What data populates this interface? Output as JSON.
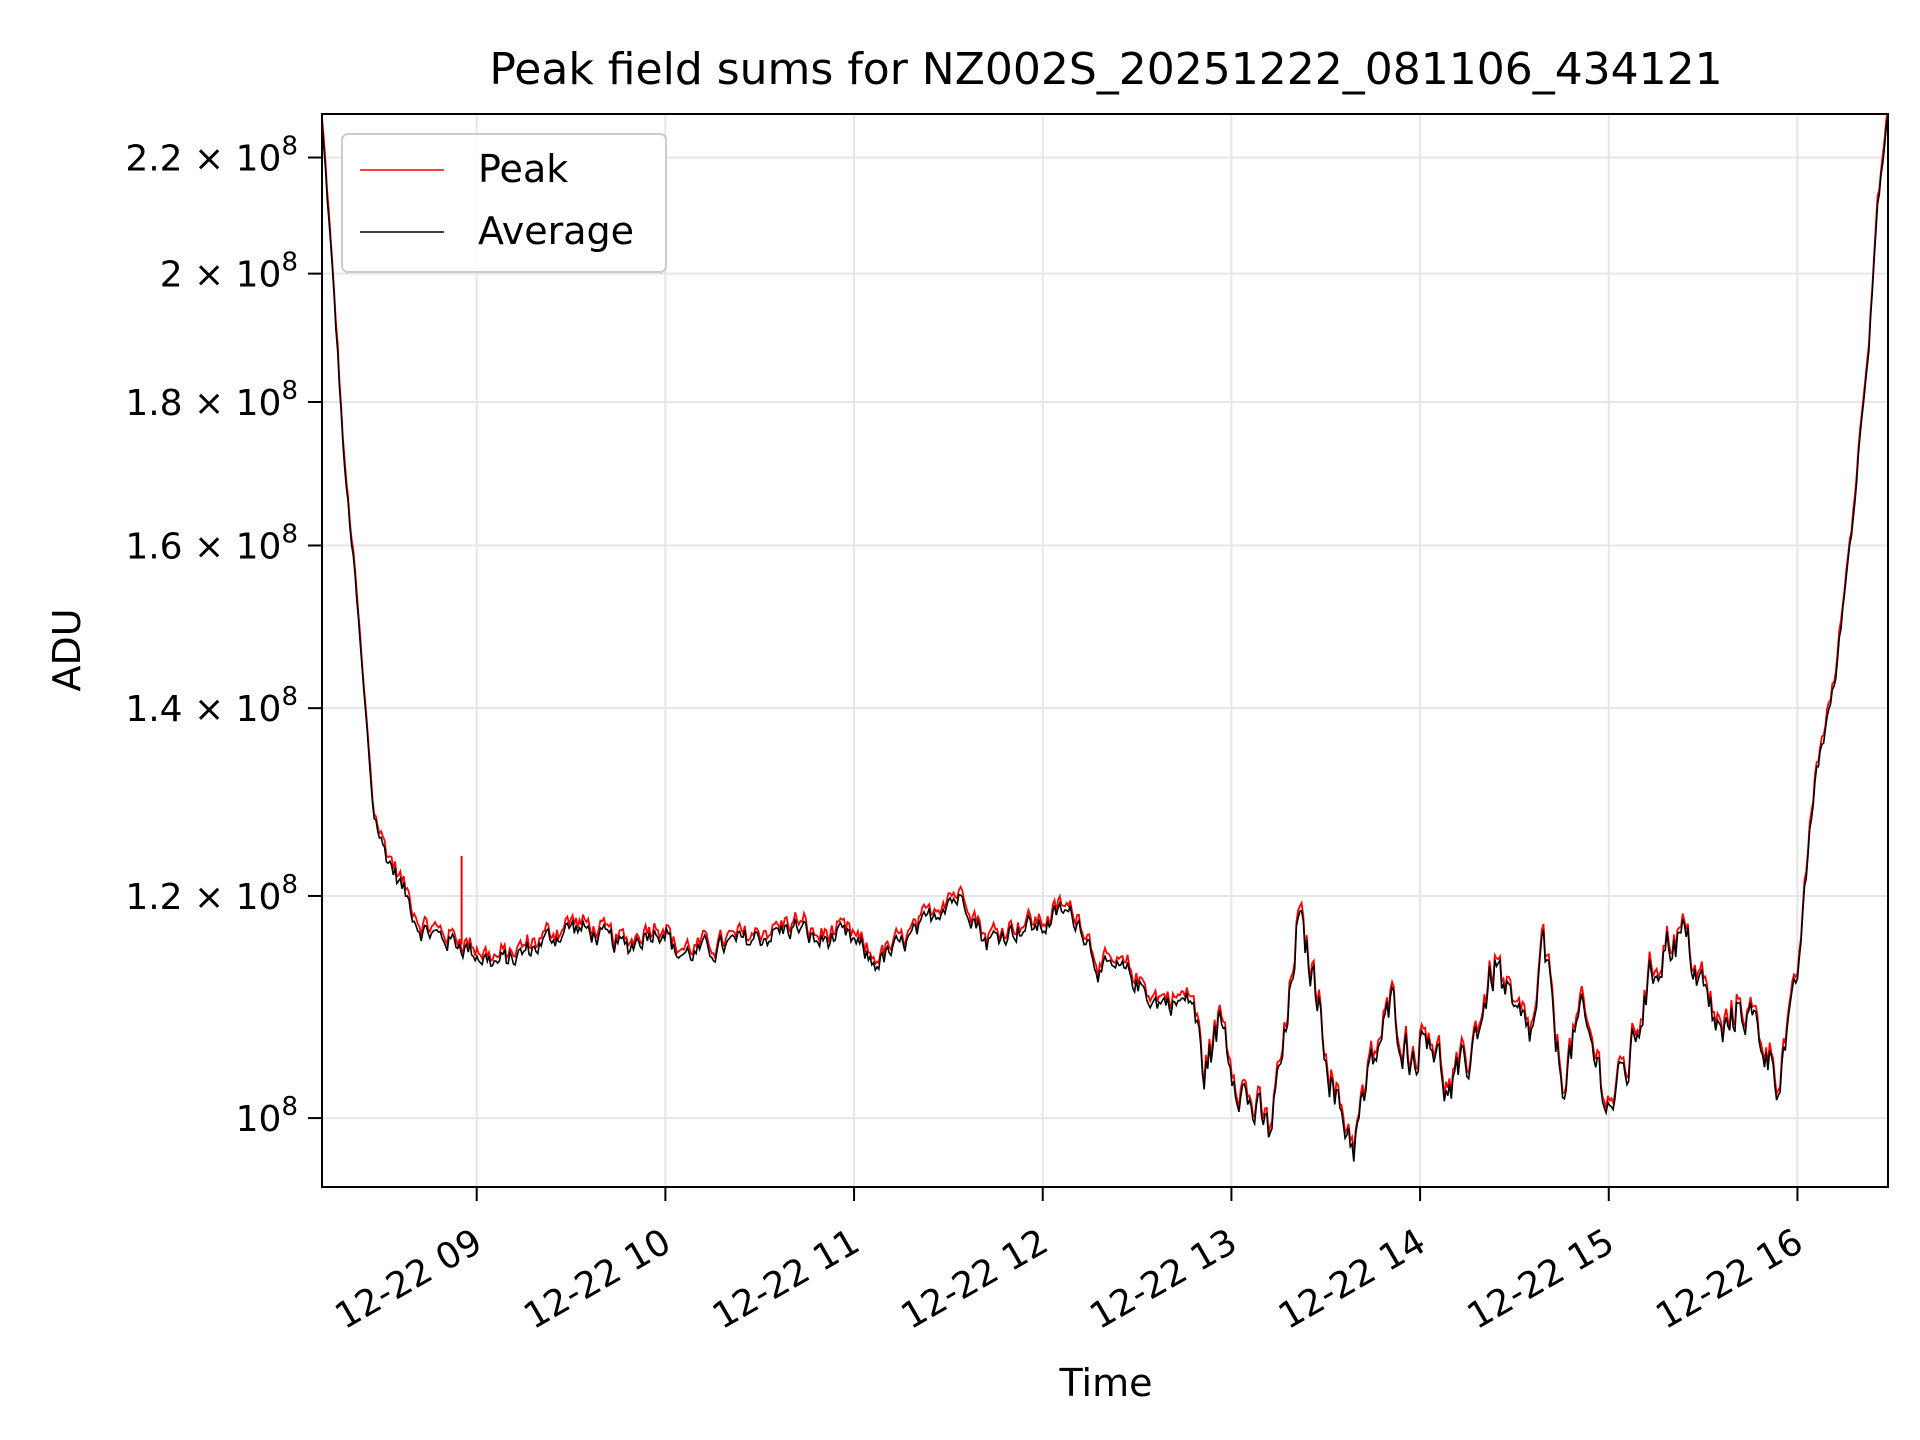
{
  "chart_data": {
    "type": "line",
    "title": "Peak field sums for NZ002S_20251222_081106_434121",
    "xlabel": "Time",
    "ylabel": "ADU",
    "yscale": "log",
    "ylim": [
      94500000,
      228000000
    ],
    "xlim_hours": [
      8.18,
      16.48
    ],
    "grid": true,
    "legend_position": "upper-left",
    "x_ticks": [
      {
        "hour": 9,
        "label": "12-22 09"
      },
      {
        "hour": 10,
        "label": "12-22 10"
      },
      {
        "hour": 11,
        "label": "12-22 11"
      },
      {
        "hour": 12,
        "label": "12-22 12"
      },
      {
        "hour": 13,
        "label": "12-22 13"
      },
      {
        "hour": 14,
        "label": "12-22 14"
      },
      {
        "hour": 15,
        "label": "12-22 15"
      },
      {
        "hour": 16,
        "label": "12-22 16"
      }
    ],
    "y_ticks": [
      {
        "value": 100000000,
        "mantissa": "",
        "exp": "8"
      },
      {
        "value": 120000000,
        "mantissa": "1.2",
        "exp": "8"
      },
      {
        "value": 140000000,
        "mantissa": "1.4",
        "exp": "8"
      },
      {
        "value": 160000000,
        "mantissa": "1.6",
        "exp": "8"
      },
      {
        "value": 180000000,
        "mantissa": "1.8",
        "exp": "8"
      },
      {
        "value": 200000000,
        "mantissa": "2",
        "exp": "8"
      },
      {
        "value": 220000000,
        "mantissa": "2.2",
        "exp": "8"
      }
    ],
    "series": [
      {
        "name": "Peak",
        "color": "#ff0000",
        "spike": {
          "hour": 8.92,
          "value": 124000000
        },
        "anchors": [
          [
            8.18,
            226000000
          ],
          [
            8.25,
            193000000
          ],
          [
            8.3,
            170000000
          ],
          [
            8.35,
            157000000
          ],
          [
            8.4,
            142000000
          ],
          [
            8.45,
            129000000
          ],
          [
            8.5,
            125000000
          ],
          [
            8.6,
            121000000
          ],
          [
            8.7,
            117000000
          ],
          [
            8.8,
            116000000
          ],
          [
            8.9,
            115500000
          ],
          [
            9.0,
            114500000
          ],
          [
            9.1,
            113500000
          ],
          [
            9.2,
            114000000
          ],
          [
            9.3,
            115000000
          ],
          [
            9.4,
            116000000
          ],
          [
            9.5,
            117000000
          ],
          [
            9.6,
            116500000
          ],
          [
            9.7,
            115500000
          ],
          [
            9.8,
            115000000
          ],
          [
            9.9,
            116500000
          ],
          [
            10.0,
            117000000
          ],
          [
            10.05,
            114500000
          ],
          [
            10.15,
            114500000
          ],
          [
            10.3,
            115000000
          ],
          [
            10.5,
            116000000
          ],
          [
            10.6,
            116500000
          ],
          [
            10.7,
            117000000
          ],
          [
            10.8,
            115500000
          ],
          [
            10.9,
            116000000
          ],
          [
            11.0,
            115500000
          ],
          [
            11.1,
            113500000
          ],
          [
            11.2,
            114500000
          ],
          [
            11.35,
            116500000
          ],
          [
            11.5,
            120000000
          ],
          [
            11.6,
            119500000
          ],
          [
            11.7,
            115500000
          ],
          [
            11.8,
            116500000
          ],
          [
            11.9,
            117000000
          ],
          [
            12.0,
            117000000
          ],
          [
            12.1,
            118500000
          ],
          [
            12.2,
            117500000
          ],
          [
            12.3,
            113000000
          ],
          [
            12.45,
            112500000
          ],
          [
            12.6,
            110000000
          ],
          [
            12.8,
            110000000
          ],
          [
            12.85,
            103500000
          ],
          [
            12.95,
            108500000
          ],
          [
            13.0,
            105000000
          ],
          [
            13.1,
            101000000
          ],
          [
            13.2,
            98500000
          ],
          [
            13.3,
            108000000
          ],
          [
            13.35,
            117500000
          ],
          [
            13.45,
            111000000
          ],
          [
            13.55,
            101500000
          ],
          [
            13.65,
            98000000
          ],
          [
            13.75,
            104500000
          ],
          [
            13.85,
            109500000
          ],
          [
            13.95,
            105000000
          ],
          [
            14.05,
            108000000
          ],
          [
            14.15,
            101500000
          ],
          [
            14.25,
            104500000
          ],
          [
            14.35,
            110500000
          ],
          [
            14.4,
            113500000
          ],
          [
            14.5,
            108000000
          ],
          [
            14.6,
            107000000
          ],
          [
            14.65,
            115000000
          ],
          [
            14.75,
            103000000
          ],
          [
            14.85,
            108500000
          ],
          [
            14.95,
            104000000
          ],
          [
            15.0,
            101000000
          ],
          [
            15.1,
            104000000
          ],
          [
            15.2,
            111000000
          ],
          [
            15.3,
            115500000
          ],
          [
            15.4,
            116000000
          ],
          [
            15.5,
            111000000
          ],
          [
            15.6,
            106500000
          ],
          [
            15.7,
            110000000
          ],
          [
            15.8,
            107000000
          ],
          [
            15.9,
            103500000
          ],
          [
            16.0,
            112000000
          ],
          [
            16.1,
            133000000
          ],
          [
            16.2,
            143000000
          ],
          [
            16.3,
            165000000
          ],
          [
            16.38,
            190000000
          ],
          [
            16.42,
            210000000
          ],
          [
            16.48,
            227000000
          ]
        ]
      },
      {
        "name": "Average",
        "color": "#000000",
        "anchors": [
          [
            8.18,
            226000000
          ],
          [
            8.25,
            193000000
          ],
          [
            8.3,
            170000000
          ],
          [
            8.35,
            157000000
          ],
          [
            8.4,
            142000000
          ],
          [
            8.45,
            129000000
          ],
          [
            8.5,
            125000000
          ],
          [
            8.6,
            121000000
          ],
          [
            8.7,
            117000000
          ],
          [
            8.8,
            116000000
          ],
          [
            8.9,
            115500000
          ],
          [
            9.0,
            114500000
          ],
          [
            9.1,
            113500000
          ],
          [
            9.2,
            114000000
          ],
          [
            9.3,
            115000000
          ],
          [
            9.4,
            116000000
          ],
          [
            9.5,
            117000000
          ],
          [
            9.6,
            116500000
          ],
          [
            9.7,
            115500000
          ],
          [
            9.8,
            115000000
          ],
          [
            9.9,
            116500000
          ],
          [
            10.0,
            117000000
          ],
          [
            10.05,
            114500000
          ],
          [
            10.15,
            114500000
          ],
          [
            10.3,
            115000000
          ],
          [
            10.5,
            116000000
          ],
          [
            10.6,
            116500000
          ],
          [
            10.7,
            117000000
          ],
          [
            10.8,
            115500000
          ],
          [
            10.9,
            116000000
          ],
          [
            11.0,
            115500000
          ],
          [
            11.1,
            113500000
          ],
          [
            11.2,
            114500000
          ],
          [
            11.35,
            116500000
          ],
          [
            11.5,
            120000000
          ],
          [
            11.6,
            119500000
          ],
          [
            11.7,
            115500000
          ],
          [
            11.8,
            116500000
          ],
          [
            11.9,
            117000000
          ],
          [
            12.0,
            117000000
          ],
          [
            12.1,
            118500000
          ],
          [
            12.2,
            117500000
          ],
          [
            12.3,
            113000000
          ],
          [
            12.45,
            112500000
          ],
          [
            12.6,
            110000000
          ],
          [
            12.8,
            110000000
          ],
          [
            12.85,
            103500000
          ],
          [
            12.95,
            108500000
          ],
          [
            13.0,
            105000000
          ],
          [
            13.1,
            101000000
          ],
          [
            13.2,
            98500000
          ],
          [
            13.3,
            108000000
          ],
          [
            13.35,
            117500000
          ],
          [
            13.45,
            111000000
          ],
          [
            13.55,
            101500000
          ],
          [
            13.65,
            98000000
          ],
          [
            13.75,
            104500000
          ],
          [
            13.85,
            109500000
          ],
          [
            13.95,
            105000000
          ],
          [
            14.05,
            108000000
          ],
          [
            14.15,
            101500000
          ],
          [
            14.25,
            104500000
          ],
          [
            14.35,
            110500000
          ],
          [
            14.4,
            113500000
          ],
          [
            14.5,
            108000000
          ],
          [
            14.6,
            107000000
          ],
          [
            14.65,
            115000000
          ],
          [
            14.75,
            103000000
          ],
          [
            14.85,
            108500000
          ],
          [
            14.95,
            104000000
          ],
          [
            15.0,
            101000000
          ],
          [
            15.1,
            104000000
          ],
          [
            15.2,
            111000000
          ],
          [
            15.3,
            115500000
          ],
          [
            15.4,
            116000000
          ],
          [
            15.5,
            111000000
          ],
          [
            15.6,
            106500000
          ],
          [
            15.7,
            110000000
          ],
          [
            15.8,
            107000000
          ],
          [
            15.9,
            103500000
          ],
          [
            16.0,
            112000000
          ],
          [
            16.1,
            133000000
          ],
          [
            16.2,
            143000000
          ],
          [
            16.3,
            165000000
          ],
          [
            16.38,
            190000000
          ],
          [
            16.42,
            210000000
          ],
          [
            16.48,
            227000000
          ]
        ]
      }
    ]
  }
}
